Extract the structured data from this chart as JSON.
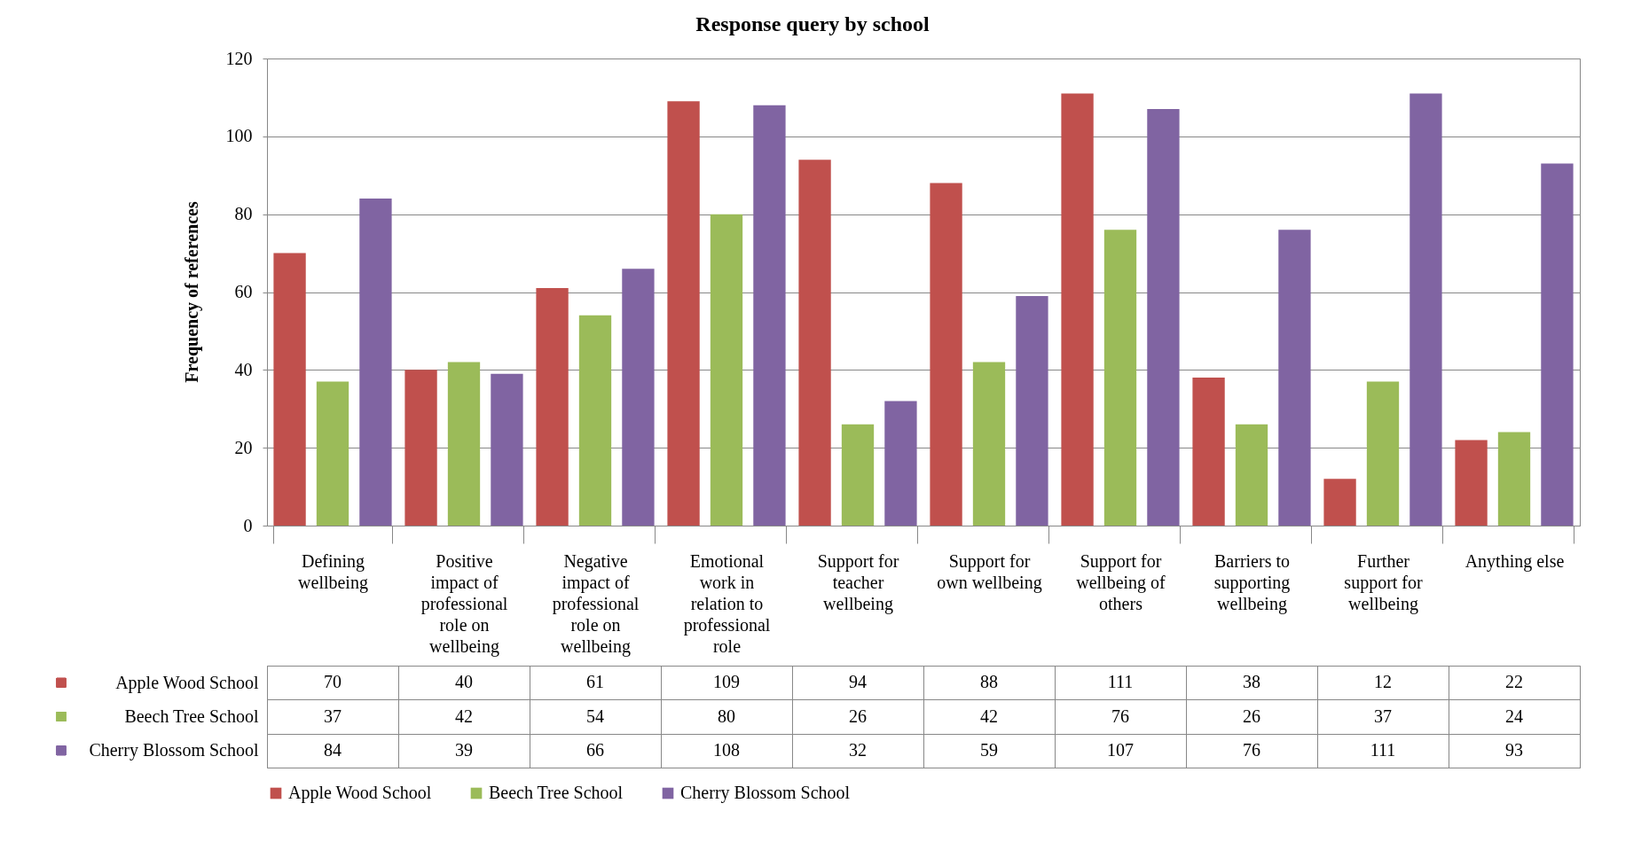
{
  "chart_data": {
    "type": "bar",
    "title": "Response query by school",
    "ylabel": "Frequency of references",
    "categories": [
      "Defining wellbeing",
      "Positive impact of professional role on wellbeing",
      "Negative impact of professional role on wellbeing",
      "Emotional work in relation to professional role",
      "Support for teacher wellbeing",
      "Support for own wellbeing",
      "Support for wellbeing of others",
      "Barriers to supporting wellbeing",
      "Further support for wellbeing",
      "Anything else"
    ],
    "series": [
      {
        "name": "Apple Wood School",
        "color": "#c0504d",
        "values": [
          70,
          40,
          61,
          109,
          94,
          88,
          111,
          38,
          12,
          22
        ]
      },
      {
        "name": "Beech Tree School",
        "color": "#9bbb59",
        "values": [
          37,
          42,
          54,
          80,
          26,
          42,
          76,
          26,
          37,
          24
        ]
      },
      {
        "name": "Cherry Blossom School",
        "color": "#8064a2",
        "values": [
          84,
          39,
          66,
          108,
          32,
          59,
          107,
          76,
          111,
          93
        ]
      }
    ],
    "ylim": [
      0,
      120
    ],
    "yticks": [
      0,
      20,
      40,
      60,
      80,
      100,
      120
    ],
    "grid": "y",
    "legend": "bottom",
    "data_labels": true
  }
}
